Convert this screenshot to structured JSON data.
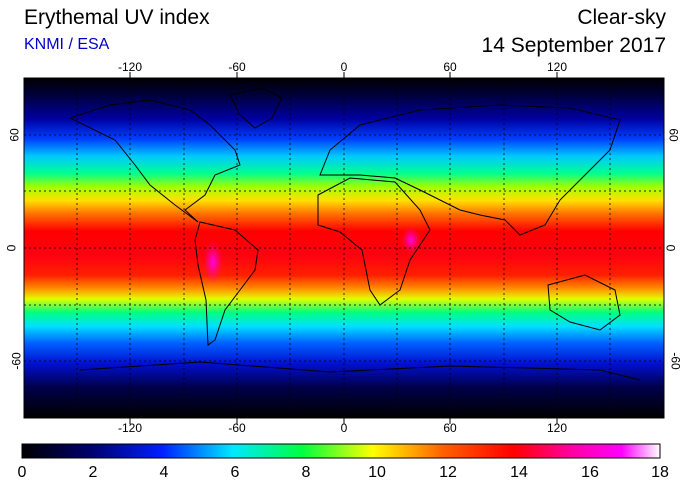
{
  "header": {
    "title": "Erythemal UV index",
    "subtitle": "KNMI / ESA",
    "condition": "Clear-sky",
    "date": "14 September 2017"
  },
  "map": {
    "projection": "equirectangular",
    "lon_range": [
      -180,
      180
    ],
    "lat_range": [
      -90,
      90
    ],
    "grid": true,
    "lon_ticks": [
      "-120",
      "-60",
      "0",
      "60",
      "120"
    ],
    "lat_ticks": [
      "60",
      "0",
      "-60"
    ],
    "colors": {
      "land_outline": "#000000",
      "grid": "#000000"
    }
  },
  "colorbar": {
    "min": 0,
    "max": 18,
    "ticks": [
      "0",
      "2",
      "4",
      "6",
      "8",
      "10",
      "12",
      "14",
      "16",
      "18"
    ],
    "stops": [
      "#000000",
      "#0000b0",
      "#0080ff",
      "#00ffff",
      "#00ff60",
      "#a0ff00",
      "#ffff00",
      "#ff9000",
      "#ff0000",
      "#ff0080",
      "#ff00ff",
      "#ffffff"
    ]
  }
}
